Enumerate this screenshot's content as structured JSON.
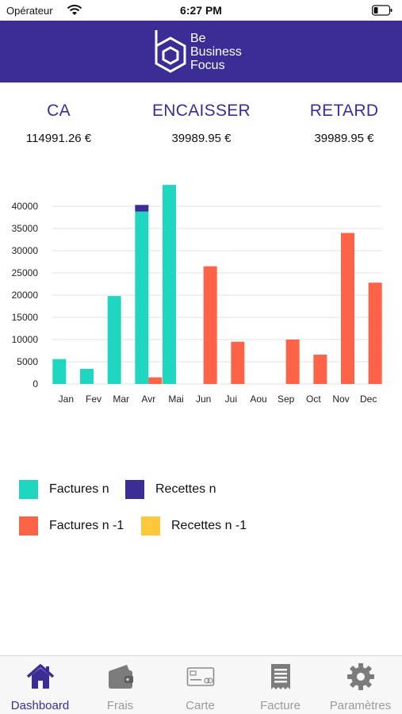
{
  "status_bar": {
    "carrier": "Opérateur",
    "time": "6:27 PM"
  },
  "header": {
    "logo_line1": "Be",
    "logo_line2": "Business",
    "logo_line3": "Focus"
  },
  "kpis": [
    {
      "label": "CA",
      "value": "114991.26 €"
    },
    {
      "label": "ENCAISSER",
      "value": "39989.95 €"
    },
    {
      "label": "RETARD",
      "value": "39989.95 €"
    }
  ],
  "colors": {
    "brand": "#3a2d96",
    "factures_n": "#1fd6c0",
    "recettes_n": "#3a2d96",
    "factures_n1": "#ff6347",
    "recettes_n1": "#ffc83a"
  },
  "chart_data": {
    "type": "bar",
    "categories": [
      "Jan",
      "Fev",
      "Mar",
      "Avr",
      "Mai",
      "Jun",
      "Jui",
      "Aou",
      "Sep",
      "Oct",
      "Nov",
      "Dec"
    ],
    "ylim": [
      0,
      45000
    ],
    "yticks": [
      0,
      5000,
      10000,
      15000,
      20000,
      25000,
      30000,
      35000,
      40000
    ],
    "grid": true,
    "series": [
      {
        "name": "Factures n",
        "stack": "n",
        "color": "#1fd6c0",
        "values": [
          5600,
          3400,
          19800,
          38800,
          44800,
          0,
          0,
          0,
          0,
          0,
          0,
          0
        ]
      },
      {
        "name": "Recettes n",
        "stack": "n",
        "color": "#3a2d96",
        "values": [
          0,
          0,
          0,
          1500,
          0,
          0,
          0,
          0,
          0,
          0,
          0,
          0
        ]
      },
      {
        "name": "Factures n -1",
        "stack": "n1",
        "color": "#ff6347",
        "values": [
          0,
          0,
          0,
          1500,
          0,
          26500,
          9500,
          0,
          10000,
          6600,
          34000,
          22800
        ]
      },
      {
        "name": "Recettes n -1",
        "stack": "n1",
        "color": "#ffc83a",
        "values": [
          0,
          0,
          0,
          0,
          0,
          0,
          0,
          0,
          0,
          0,
          0,
          0
        ]
      }
    ]
  },
  "tabs": [
    {
      "label": "Dashboard",
      "icon": "home-icon",
      "active": true
    },
    {
      "label": "Frais",
      "icon": "wallet-icon",
      "active": false
    },
    {
      "label": "Carte",
      "icon": "card-icon",
      "active": false
    },
    {
      "label": "Facture",
      "icon": "receipt-icon",
      "active": false
    },
    {
      "label": "Paramètres",
      "icon": "gear-icon",
      "active": false
    }
  ]
}
